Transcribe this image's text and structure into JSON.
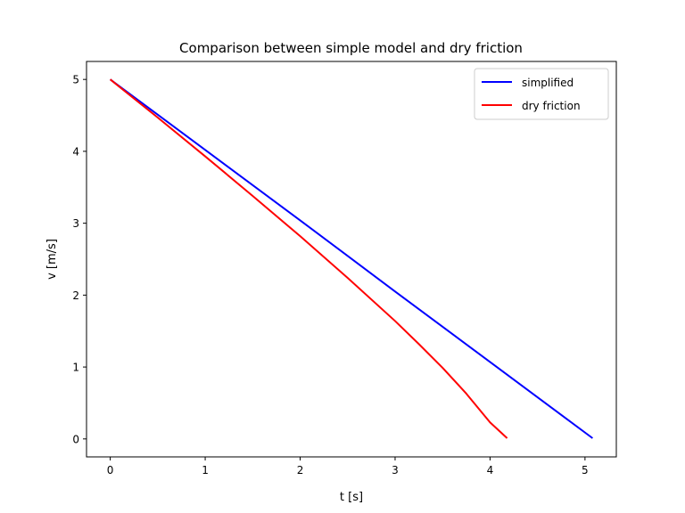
{
  "chart_data": {
    "type": "line",
    "title": "Comparison between simple model and dry friction",
    "xlabel": "t [s]",
    "ylabel": "v [m/s]",
    "xlim": [
      -0.25,
      5.33
    ],
    "ylim": [
      -0.25,
      5.25
    ],
    "xticks": [
      0,
      1,
      2,
      3,
      4,
      5
    ],
    "yticks": [
      0,
      1,
      2,
      3,
      4,
      5
    ],
    "grid": false,
    "legend_position": "top-right",
    "series": [
      {
        "name": "simplified",
        "color": "#0000ff",
        "x": [
          0,
          1,
          2,
          3,
          4,
          5.08
        ],
        "y": [
          5.0,
          4.02,
          3.04,
          2.05,
          1.07,
          0.01
        ]
      },
      {
        "name": "dry friction",
        "color": "#ff0000",
        "x": [
          0,
          0.5,
          1,
          1.5,
          2,
          2.5,
          3,
          3.25,
          3.5,
          3.75,
          4.0,
          4.18
        ],
        "y": [
          5.0,
          4.47,
          3.93,
          3.38,
          2.82,
          2.24,
          1.64,
          1.32,
          0.99,
          0.63,
          0.23,
          0.01
        ]
      }
    ]
  }
}
